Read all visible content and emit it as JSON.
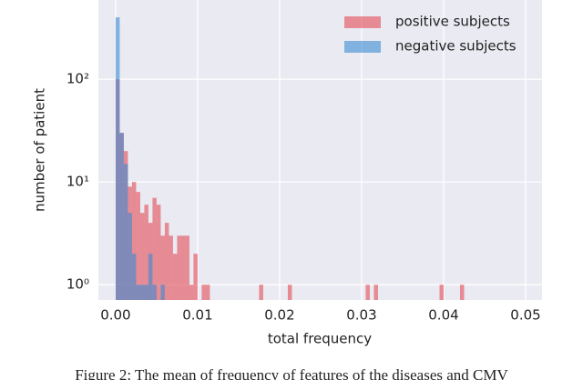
{
  "chart_data": {
    "type": "histogram",
    "xlabel": "total frequency",
    "ylabel": "number of patient",
    "caption": "Figure 2: The mean of frequency of features of the diseases and CMV",
    "bins": [
      0,
      0.0005,
      0.001,
      0.0015,
      0.002,
      0.0025,
      0.003,
      0.0035,
      0.004,
      0.0045,
      0.005,
      0.0055,
      0.006,
      0.0065,
      0.007,
      0.0075,
      0.008,
      0.0085,
      0.009,
      0.0095,
      0.01,
      0.0105,
      0.011,
      0.0115,
      0.012,
      0.0125,
      0.013,
      0.0135,
      0.014,
      0.0145,
      0.015,
      0.0155,
      0.016,
      0.0165,
      0.017,
      0.0175,
      0.018,
      0.0185,
      0.019,
      0.0195,
      0.02,
      0.0205,
      0.021,
      0.0215,
      0.022,
      0.0225,
      0.023,
      0.0235,
      0.024,
      0.0245,
      0.025,
      0.0255,
      0.026,
      0.0265,
      0.027,
      0.0275,
      0.028,
      0.0285,
      0.029,
      0.0295,
      0.03,
      0.0305,
      0.031,
      0.0315,
      0.032,
      0.0325,
      0.033,
      0.0335,
      0.034,
      0.0345,
      0.035,
      0.0355,
      0.036,
      0.0365,
      0.037,
      0.0375,
      0.038,
      0.0385,
      0.039,
      0.0395,
      0.04,
      0.0405,
      0.041,
      0.0415,
      0.042,
      0.0425
    ],
    "series": [
      {
        "name": "positive subjects",
        "color": "#e34a55",
        "values": [
          100,
          30,
          20,
          9,
          10,
          8,
          5,
          6,
          4,
          7,
          6,
          3,
          4,
          3,
          2,
          3,
          3,
          3,
          1,
          2,
          0,
          1,
          1,
          0,
          0,
          0,
          0,
          0,
          0,
          0,
          0,
          0,
          0,
          0,
          0,
          1,
          0,
          0,
          0,
          0,
          0,
          0,
          1,
          0,
          0,
          0,
          0,
          0,
          0,
          0,
          0,
          0,
          0,
          0,
          0,
          0,
          0,
          0,
          0,
          0,
          0,
          1,
          0,
          1,
          0,
          0,
          0,
          0,
          0,
          0,
          0,
          0,
          0,
          0,
          0,
          0,
          0,
          0,
          0,
          1,
          0,
          0,
          0,
          0,
          1
        ]
      },
      {
        "name": "negative subjects",
        "color": "#3b8bd0",
        "values": [
          400,
          30,
          15,
          5,
          2,
          1,
          1,
          1,
          2,
          1,
          0,
          1,
          0,
          0,
          0,
          0,
          0,
          0,
          0,
          0,
          0,
          0,
          0,
          0,
          0,
          0,
          0,
          0,
          0,
          0,
          0,
          0,
          0,
          0,
          0,
          0,
          0,
          0,
          0,
          0,
          0,
          0,
          0,
          0,
          0,
          0,
          0,
          0,
          0,
          0,
          0,
          0,
          0,
          0,
          0,
          0,
          0,
          0,
          0,
          0,
          0,
          0,
          0,
          0,
          0,
          0,
          0,
          0,
          0,
          0,
          0,
          0,
          0,
          0,
          0,
          0,
          0,
          0,
          0,
          0,
          0,
          0,
          0,
          0,
          0
        ]
      }
    ],
    "alpha": 0.6,
    "xlim": [
      -0.0021,
      0.052
    ],
    "xticks": [
      {
        "value": 0,
        "label": "0.00"
      },
      0.01,
      0.02,
      0.03,
      0.04,
      0.05
    ],
    "ylim": [
      0.71,
      590
    ],
    "ylog": true,
    "yticks": [
      {
        "value": 1,
        "label": "10⁰"
      },
      {
        "value": 10,
        "label": "10¹"
      },
      {
        "value": 100,
        "label": "10²"
      }
    ],
    "grid": true,
    "legend": "upper right"
  }
}
